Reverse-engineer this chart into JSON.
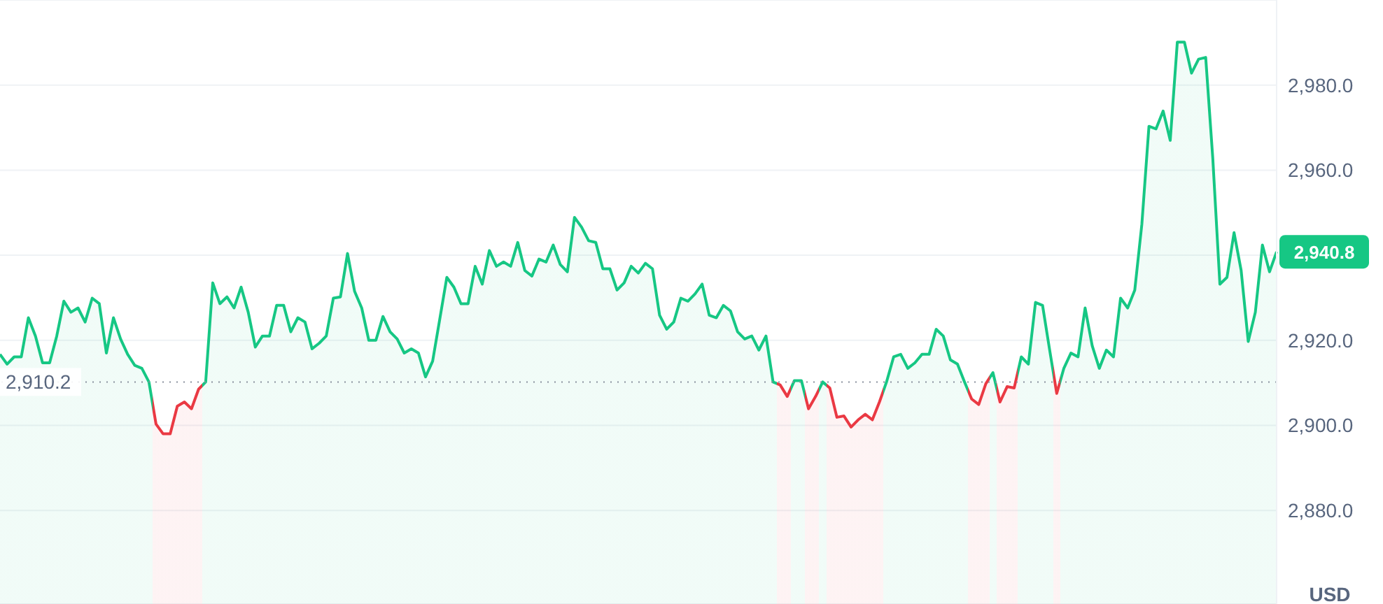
{
  "chart_data": {
    "type": "area",
    "ylabel": "USD",
    "categories": [
      null,
      null,
      null,
      null,
      null,
      null,
      null,
      null,
      null,
      null,
      null,
      null,
      null,
      null,
      null,
      null,
      null,
      null,
      null,
      null,
      null,
      null,
      null,
      null,
      null,
      null,
      null,
      null,
      null,
      null,
      null,
      null,
      null,
      null,
      null,
      null,
      null,
      null,
      null,
      null,
      null,
      null,
      null,
      null,
      null,
      null,
      null,
      null,
      null,
      null,
      null,
      null,
      null,
      null,
      null,
      null,
      null,
      null,
      null,
      null,
      null,
      null,
      null,
      null,
      null,
      null,
      null,
      null,
      null,
      null,
      null,
      null,
      null,
      null,
      null,
      null,
      null,
      null,
      null,
      null,
      null,
      null,
      null,
      null,
      null,
      null,
      null,
      null,
      null,
      null,
      null,
      null,
      null,
      null,
      null,
      null,
      null,
      null,
      null,
      null,
      null,
      null,
      null,
      null,
      null,
      null,
      null,
      null,
      null,
      null,
      null,
      null,
      null,
      null,
      null,
      null,
      null,
      null,
      null,
      null,
      null,
      null,
      null,
      null,
      null,
      null,
      null,
      null,
      null,
      null,
      null,
      null,
      null,
      null,
      null,
      null,
      null,
      null,
      null,
      null,
      null,
      null,
      null,
      null,
      null,
      null,
      null,
      null,
      null,
      null,
      null,
      null,
      null,
      null,
      null,
      null,
      null,
      null,
      null,
      null,
      null,
      null,
      null,
      null,
      null,
      null,
      null,
      null,
      null,
      null,
      null,
      null,
      null,
      null,
      null,
      null,
      null,
      null,
      null,
      null,
      null
    ],
    "series": [
      {
        "color": "#16c784",
        "values": [
          2916.7,
          2914.4,
          2916.1,
          2916.1,
          2925.3,
          2921.0,
          2914.7,
          2914.7,
          2921.0,
          2929.2,
          2926.6,
          2927.6,
          2924.3,
          2929.9,
          2928.6,
          2917.0,
          2925.3,
          2920.3,
          2916.7,
          2914.1,
          2913.4,
          2910.2,
          2900.3,
          2898.0,
          2898.0,
          2904.5,
          2905.5,
          2903.9,
          2908.5,
          2910.2,
          2933.5,
          2928.6,
          2930.2,
          2927.6,
          2932.5,
          2926.6,
          2918.4,
          2921.0,
          2921.0,
          2928.2,
          2928.2,
          2922.0,
          2925.3,
          2924.3,
          2918.0,
          2919.3,
          2921.0,
          2929.9,
          2930.2,
          2940.4,
          2931.5,
          2927.6,
          2920.0,
          2920.0,
          2925.6,
          2922.0,
          2920.3,
          2917.0,
          2918.0,
          2917.0,
          2911.4,
          2915.1,
          2924.9,
          2934.8,
          2932.5,
          2928.6,
          2928.6,
          2937.4,
          2933.2,
          2941.1,
          2937.4,
          2938.4,
          2937.4,
          2943.0,
          2936.4,
          2935.1,
          2939.1,
          2938.4,
          2942.4,
          2937.8,
          2936.1,
          2948.9,
          2946.6,
          2943.4,
          2943.0,
          2936.8,
          2936.8,
          2931.8,
          2933.5,
          2937.4,
          2935.8,
          2938.1,
          2936.8,
          2925.9,
          2922.6,
          2924.3,
          2929.9,
          2929.2,
          2930.9,
          2933.2,
          2925.9,
          2925.3,
          2928.2,
          2926.9,
          2922.0,
          2920.3,
          2921.0,
          2917.7,
          2921.0,
          2910.2,
          2909.5,
          2906.8,
          2910.5,
          2910.5,
          2903.9,
          2906.8,
          2910.2,
          2908.8,
          2901.9,
          2902.2,
          2899.6,
          2901.3,
          2902.6,
          2901.3,
          2905.5,
          2910.2,
          2916.1,
          2916.7,
          2913.4,
          2914.7,
          2916.7,
          2916.7,
          2922.6,
          2921.0,
          2915.4,
          2914.4,
          2910.2,
          2906.2,
          2904.9,
          2909.8,
          2912.4,
          2905.5,
          2909.1,
          2908.8,
          2916.1,
          2914.4,
          2928.9,
          2928.2,
          2917.7,
          2907.5,
          2913.4,
          2917.0,
          2916.1,
          2927.6,
          2918.7,
          2913.4,
          2917.7,
          2916.1,
          2929.9,
          2927.6,
          2931.8,
          2947.3,
          2970.3,
          2969.7,
          2973.9,
          2967.0,
          2990.1,
          2990.1,
          2982.8,
          2986.1,
          2986.5,
          2962.8,
          2933.2,
          2934.8,
          2945.3,
          2936.4,
          2919.7,
          2926.6,
          2942.4,
          2936.1,
          2940.8
        ],
        "value_labels": [
          null,
          null,
          null,
          null,
          null,
          null,
          null,
          null,
          null,
          null,
          null,
          null,
          null,
          null,
          null,
          null,
          null,
          null,
          null,
          null,
          null,
          null,
          null,
          null,
          null,
          null,
          null,
          null,
          null,
          null,
          null,
          null,
          null,
          null,
          null,
          null,
          null,
          null,
          null,
          null,
          null,
          null,
          null,
          null,
          null,
          null,
          null,
          null,
          null,
          null,
          null,
          null,
          null,
          null,
          null,
          null,
          null,
          null,
          null,
          null,
          null,
          null,
          null,
          null,
          null,
          null,
          null,
          null,
          null,
          null,
          null,
          null,
          null,
          null,
          null,
          null,
          null,
          null,
          null,
          null,
          null,
          null,
          null,
          null,
          null,
          null,
          null,
          null,
          null,
          null,
          null,
          null,
          null,
          null,
          null,
          null,
          null,
          null,
          null,
          null,
          null,
          null,
          null,
          null,
          null,
          null,
          null,
          null,
          null,
          null,
          null,
          null,
          null,
          null,
          null,
          null,
          null,
          null,
          null,
          null,
          null,
          null,
          null,
          null,
          null,
          null,
          null,
          null,
          null,
          null,
          null,
          null,
          null,
          null,
          null,
          null,
          null,
          null,
          null,
          null,
          null,
          null,
          null,
          null,
          null,
          null,
          null,
          null,
          null,
          null,
          null,
          null,
          null,
          null,
          null,
          null,
          null,
          null,
          null,
          null,
          null,
          null,
          null,
          null,
          null,
          null,
          null,
          null,
          null,
          null,
          null,
          null,
          null,
          null,
          null,
          null,
          null,
          null,
          null,
          null,
          "2,940.8"
        ],
        "colors": [
          "#16c784",
          "#16c784",
          "#16c784",
          "#16c784",
          "#16c784",
          "#16c784",
          "#16c784",
          "#16c784",
          "#16c784",
          "#16c784",
          "#16c784",
          "#16c784",
          "#16c784",
          "#16c784",
          "#16c784",
          "#16c784",
          "#16c784",
          "#16c784",
          "#16c784",
          "#16c784",
          "#16c784",
          "#16c784",
          "#ea3943",
          "#ea3943",
          "#ea3943",
          "#ea3943",
          "#ea3943",
          "#ea3943",
          "#ea3943",
          "#16c784",
          "#16c784",
          "#16c784",
          "#16c784",
          "#16c784",
          "#16c784",
          "#16c784",
          "#16c784",
          "#16c784",
          "#16c784",
          "#16c784",
          "#16c784",
          "#16c784",
          "#16c784",
          "#16c784",
          "#16c784",
          "#16c784",
          "#16c784",
          "#16c784",
          "#16c784",
          "#16c784",
          "#16c784",
          "#16c784",
          "#16c784",
          "#16c784",
          "#16c784",
          "#16c784",
          "#16c784",
          "#16c784",
          "#16c784",
          "#16c784",
          "#16c784",
          "#16c784",
          "#16c784",
          "#16c784",
          "#16c784",
          "#16c784",
          "#16c784",
          "#16c784",
          "#16c784",
          "#16c784",
          "#16c784",
          "#16c784",
          "#16c784",
          "#16c784",
          "#16c784",
          "#16c784",
          "#16c784",
          "#16c784",
          "#16c784",
          "#16c784",
          "#16c784",
          "#16c784",
          "#16c784",
          "#16c784",
          "#16c784",
          "#16c784",
          "#16c784",
          "#16c784",
          "#16c784",
          "#16c784",
          "#16c784",
          "#16c784",
          "#16c784",
          "#16c784",
          "#16c784",
          "#16c784",
          "#16c784",
          "#16c784",
          "#16c784",
          "#16c784",
          "#16c784",
          "#16c784",
          "#16c784",
          "#16c784",
          "#16c784",
          "#16c784",
          "#16c784",
          "#16c784",
          "#16c784",
          "#16c784",
          "#ea3943",
          "#ea3943",
          "#16c784",
          "#16c784",
          "#ea3943",
          "#ea3943",
          "#16c784",
          "#ea3943",
          "#ea3943",
          "#ea3943",
          "#ea3943",
          "#ea3943",
          "#ea3943",
          "#ea3943",
          "#ea3943",
          "#16c784",
          "#16c784",
          "#16c784",
          "#16c784",
          "#16c784",
          "#16c784",
          "#16c784",
          "#16c784",
          "#16c784",
          "#16c784",
          "#16c784",
          "#16c784",
          "#ea3943",
          "#ea3943",
          "#ea3943",
          "#16c784",
          "#ea3943",
          "#ea3943",
          "#ea3943",
          "#16c784",
          "#16c784",
          "#16c784",
          "#16c784",
          "#16c784",
          "#ea3943",
          "#16c784",
          "#16c784",
          "#16c784",
          "#16c784",
          "#16c784",
          "#16c784",
          "#16c784",
          "#16c784",
          "#16c784",
          "#16c784",
          "#16c784",
          "#16c784",
          "#16c784",
          "#16c784",
          "#16c784",
          "#16c784",
          "#16c784",
          "#16c784",
          "#16c784",
          "#16c784",
          "#16c784",
          "#16c784",
          "#16c784",
          "#16c784",
          "#16c784",
          "#16c784",
          "#16c784",
          "#16c784",
          "#16c784",
          "#16c784",
          "#16c784"
        ]
      }
    ],
    "ylim": [
      2858,
      3000
    ],
    "yticks": [
      {
        "value": 2880,
        "label": "2,880.0"
      },
      {
        "value": 2900,
        "label": "2,900.0"
      },
      {
        "value": 2920,
        "label": "2,920.0"
      },
      {
        "value": 2940,
        "label": null
      },
      {
        "value": 2960,
        "label": "2,960.0"
      },
      {
        "value": 2980,
        "label": "2,980.0"
      }
    ],
    "grid": "y",
    "ref_lines": [
      {
        "axis": "y",
        "value": 2910.2,
        "label": "2,910.2",
        "color": "#8a919e",
        "line_style": "dotted"
      }
    ]
  }
}
